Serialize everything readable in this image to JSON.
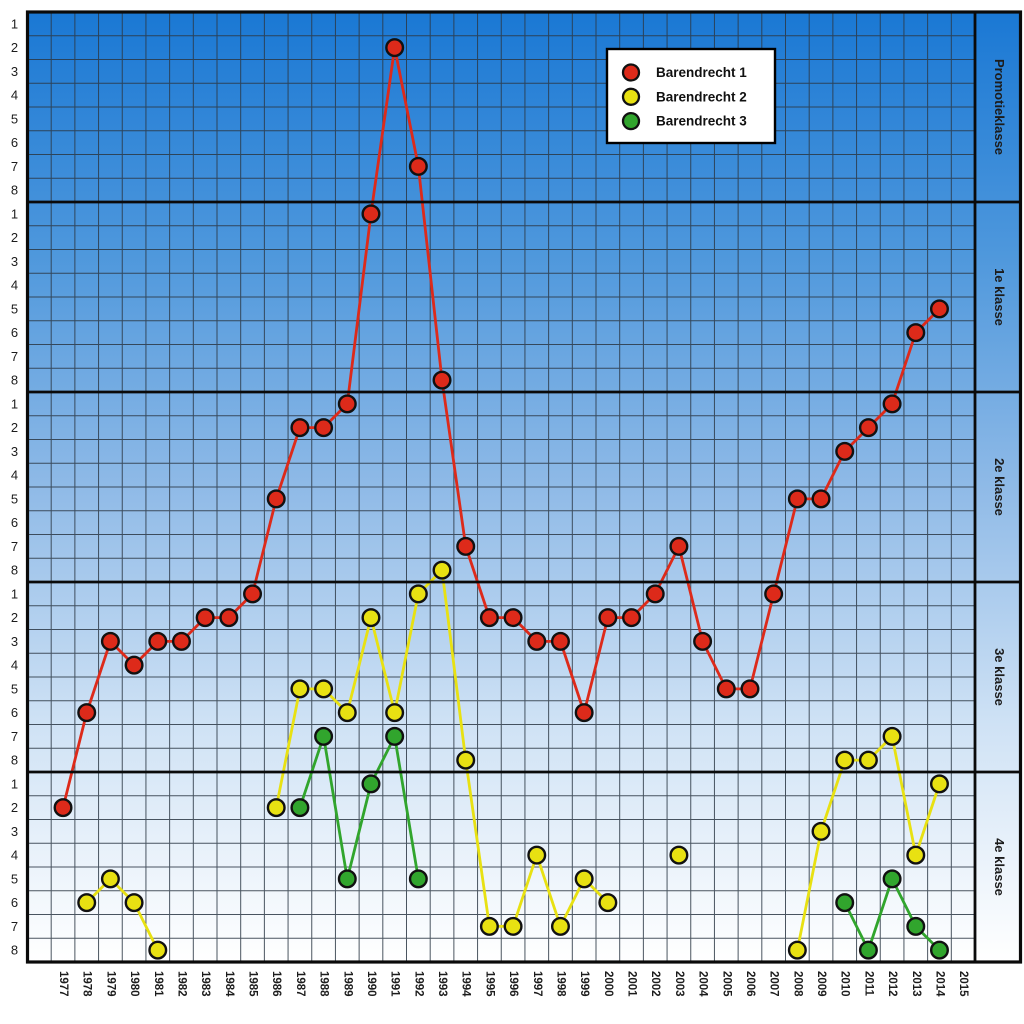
{
  "chart_data": {
    "type": "line",
    "title": "",
    "x_years": [
      1977,
      1978,
      1979,
      1980,
      1981,
      1982,
      1983,
      1984,
      1985,
      1986,
      1987,
      1988,
      1989,
      1990,
      1991,
      1992,
      1993,
      1994,
      1995,
      1996,
      1997,
      1998,
      1999,
      2000,
      2001,
      2002,
      2003,
      2004,
      2005,
      2006,
      2007,
      2008,
      2009,
      2010,
      2011,
      2012,
      2013,
      2014,
      2015
    ],
    "y_axis": {
      "direction": "top-to-bottom",
      "positions_per_division": 8,
      "tick_labels": [
        "1",
        "2",
        "3",
        "4",
        "5",
        "6",
        "7",
        "8"
      ],
      "divisions": [
        {
          "label": "Promotieklasse"
        },
        {
          "label": "1e klasse"
        },
        {
          "label": "2e klasse"
        },
        {
          "label": "3e klasse"
        },
        {
          "label": "4e klasse"
        }
      ]
    },
    "legend": {
      "position": "top-right-of-plot",
      "entries": [
        {
          "label": "Barendrecht 1",
          "color": "#dd2a1a"
        },
        {
          "label": "Barendrecht 2",
          "color": "#e8e112"
        },
        {
          "label": "Barendrecht 3",
          "color": "#31a52d"
        }
      ]
    },
    "series": [
      {
        "name": "Barendrecht 1",
        "color": "#dd2a1a",
        "points": [
          [
            1977,
            "4e klasse",
            2
          ],
          [
            1978,
            "3e klasse",
            6
          ],
          [
            1979,
            "3e klasse",
            3
          ],
          [
            1980,
            "3e klasse",
            4
          ],
          [
            1981,
            "3e klasse",
            3
          ],
          [
            1982,
            "3e klasse",
            3
          ],
          [
            1983,
            "3e klasse",
            2
          ],
          [
            1984,
            "3e klasse",
            2
          ],
          [
            1985,
            "3e klasse",
            1
          ],
          [
            1986,
            "2e klasse",
            5
          ],
          [
            1987,
            "2e klasse",
            2
          ],
          [
            1988,
            "2e klasse",
            2
          ],
          [
            1989,
            "2e klasse",
            1
          ],
          [
            1990,
            "1e klasse",
            1
          ],
          [
            1991,
            "Promotieklasse",
            2
          ],
          [
            1992,
            "Promotieklasse",
            7
          ],
          [
            1993,
            "1e klasse",
            8
          ],
          [
            1994,
            "2e klasse",
            7
          ],
          [
            1995,
            "3e klasse",
            2
          ],
          [
            1996,
            "3e klasse",
            2
          ],
          [
            1997,
            "3e klasse",
            3
          ],
          [
            1998,
            "3e klasse",
            3
          ],
          [
            1999,
            "3e klasse",
            6
          ],
          [
            2000,
            "3e klasse",
            2
          ],
          [
            2001,
            "3e klasse",
            2
          ],
          [
            2002,
            "3e klasse",
            1
          ],
          [
            2003,
            "2e klasse",
            7
          ],
          [
            2004,
            "3e klasse",
            3
          ],
          [
            2005,
            "3e klasse",
            5
          ],
          [
            2006,
            "3e klasse",
            5
          ],
          [
            2007,
            "3e klasse",
            1
          ],
          [
            2008,
            "2e klasse",
            5
          ],
          [
            2009,
            "2e klasse",
            5
          ],
          [
            2010,
            "2e klasse",
            3
          ],
          [
            2011,
            "2e klasse",
            2
          ],
          [
            2012,
            "2e klasse",
            1
          ],
          [
            2013,
            "1e klasse",
            6
          ],
          [
            2014,
            "1e klasse",
            5
          ]
        ]
      },
      {
        "name": "Barendrecht 2",
        "color": "#e8e112",
        "points": [
          [
            1978,
            "4e klasse",
            6
          ],
          [
            1979,
            "4e klasse",
            5
          ],
          [
            1980,
            "4e klasse",
            6
          ],
          [
            1981,
            "4e klasse",
            8
          ],
          [
            1986,
            "4e klasse",
            2
          ],
          [
            1987,
            "3e klasse",
            5
          ],
          [
            1988,
            "3e klasse",
            5
          ],
          [
            1989,
            "3e klasse",
            6
          ],
          [
            1990,
            "3e klasse",
            2
          ],
          [
            1991,
            "3e klasse",
            6
          ],
          [
            1992,
            "3e klasse",
            1
          ],
          [
            1993,
            "2e klasse",
            8
          ],
          [
            1994,
            "3e klasse",
            8
          ],
          [
            1995,
            "4e klasse",
            7
          ],
          [
            1996,
            "4e klasse",
            7
          ],
          [
            1997,
            "4e klasse",
            4
          ],
          [
            1998,
            "4e klasse",
            7
          ],
          [
            1999,
            "4e klasse",
            5
          ],
          [
            2000,
            "4e klasse",
            6
          ],
          [
            2003,
            "4e klasse",
            4
          ],
          [
            2008,
            "4e klasse",
            8
          ],
          [
            2009,
            "4e klasse",
            3
          ],
          [
            2010,
            "3e klasse",
            8
          ],
          [
            2011,
            "3e klasse",
            8
          ],
          [
            2012,
            "3e klasse",
            7
          ],
          [
            2013,
            "4e klasse",
            4
          ],
          [
            2014,
            "4e klasse",
            1
          ]
        ]
      },
      {
        "name": "Barendrecht 3",
        "color": "#31a52d",
        "points": [
          [
            1987,
            "4e klasse",
            2
          ],
          [
            1988,
            "3e klasse",
            7
          ],
          [
            1989,
            "4e klasse",
            5
          ],
          [
            1990,
            "4e klasse",
            1
          ],
          [
            1991,
            "3e klasse",
            7
          ],
          [
            1992,
            "4e klasse",
            5
          ],
          [
            2010,
            "4e klasse",
            6
          ],
          [
            2011,
            "4e klasse",
            8
          ],
          [
            2012,
            "4e klasse",
            5
          ],
          [
            2013,
            "4e klasse",
            7
          ],
          [
            2014,
            "4e klasse",
            8
          ]
        ]
      }
    ],
    "grid": true,
    "line_break_rule": "segments only connect consecutive years",
    "colors": {
      "background_top": "#1a78d4",
      "background_mid": "#8fbae7",
      "background_bottom": "#ffffff",
      "grid_line": "#2c3845",
      "division_border": "#0a0a0a",
      "marker_stroke": "#111111",
      "legend_background": "#ffffff",
      "axis_text": "#1c1c1c"
    }
  }
}
